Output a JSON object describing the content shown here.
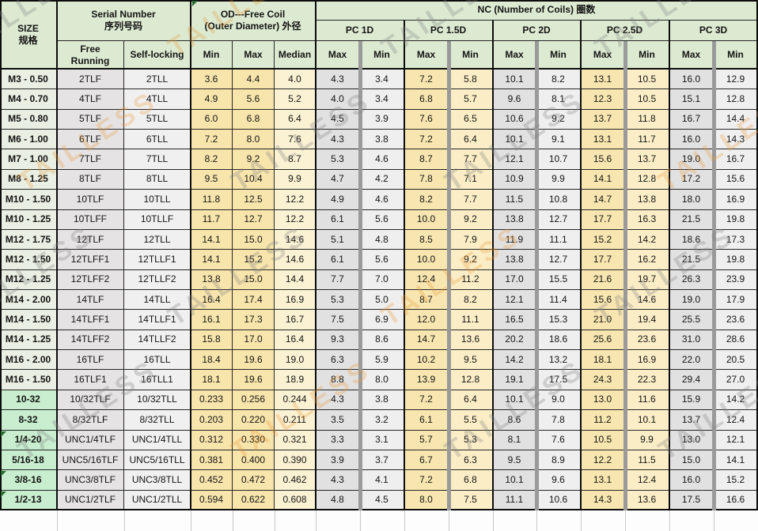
{
  "header": {
    "size": "SIZE\n规格",
    "serial": "Serial Number\n序列号码",
    "free_running": "Free\nRunning",
    "self_locking": "Self-locking",
    "od": "OD---Free Coil\n(Outer Diameter) 外径",
    "od_sub": [
      "Min",
      "Max",
      "Median"
    ],
    "nc": "NC (Number of Coils) 圈数",
    "pc_groups": [
      "PC 1D",
      "PC 1.5D",
      "PC 2D",
      "PC 2.5D",
      "PC 3D"
    ],
    "max_label": "Max",
    "min_label": "Min"
  },
  "watermark": {
    "text": "TAILLESS"
  },
  "palette": {
    "header_bg": "#dcead1",
    "size_metric": "#e9efe2",
    "size_imperial": "#c8eecf",
    "free_col": "#e5e3e3",
    "lock_col": "#f1f0f0",
    "od_minmax": "#f8e5ac",
    "od_median": "#fbf2d3",
    "nc_gray_max": "#e2e1e1",
    "nc_gray_min": "#f0efef",
    "nc_tan_max": "#f8e6b0",
    "nc_tan_min": "#fbeec6",
    "flag_green": "#276b2f",
    "watermark_gray": "rgba(128,128,128,0.30)",
    "watermark_orange": "rgba(233,150,55,0.28)"
  },
  "rows": [
    {
      "size": "M3 - 0.50",
      "type": "metric",
      "flag": false,
      "free": "2TLF",
      "lock": "2TLL",
      "od": [
        "3.6",
        "4.4",
        "4.0"
      ],
      "nc": [
        "4.3",
        "3.4",
        "7.2",
        "5.8",
        "10.1",
        "8.2",
        "13.1",
        "10.5",
        "16.0",
        "12.9"
      ]
    },
    {
      "size": "M4 - 0.70",
      "type": "metric",
      "flag": false,
      "free": "4TLF",
      "lock": "4TLL",
      "od": [
        "4.9",
        "5.6",
        "5.2"
      ],
      "nc": [
        "4.0",
        "3.4",
        "6.8",
        "5.7",
        "9.6",
        "8.1",
        "12.3",
        "10.5",
        "15.1",
        "12.8"
      ]
    },
    {
      "size": "M5 - 0.80",
      "type": "metric",
      "flag": false,
      "free": "5TLF",
      "lock": "5TLL",
      "od": [
        "6.0",
        "6.8",
        "6.4"
      ],
      "nc": [
        "4.5",
        "3.9",
        "7.6",
        "6.5",
        "10.6",
        "9.2",
        "13.7",
        "11.8",
        "16.7",
        "14.4"
      ]
    },
    {
      "size": "M6 - 1.00",
      "type": "metric",
      "flag": false,
      "free": "6TLF",
      "lock": "6TLL",
      "od": [
        "7.2",
        "8.0",
        "7.6"
      ],
      "nc": [
        "4.3",
        "3.8",
        "7.2",
        "6.4",
        "10.1",
        "9.1",
        "13.1",
        "11.7",
        "16.0",
        "14.3"
      ]
    },
    {
      "size": "M7 - 1.00",
      "type": "metric",
      "flag": false,
      "free": "7TLF",
      "lock": "7TLL",
      "od": [
        "8.2",
        "9.2",
        "8.7"
      ],
      "nc": [
        "5.3",
        "4.6",
        "8.7",
        "7.7",
        "12.1",
        "10.7",
        "15.6",
        "13.7",
        "19.0",
        "16.7"
      ]
    },
    {
      "size": "M8 - 1.25",
      "type": "metric",
      "flag": false,
      "free": "8TLF",
      "lock": "8TLL",
      "od": [
        "9.5",
        "10.4",
        "9.9"
      ],
      "nc": [
        "4.7",
        "4.2",
        "7.8",
        "7.1",
        "10.9",
        "9.9",
        "14.1",
        "12.8",
        "17.2",
        "15.6"
      ]
    },
    {
      "size": "M10 - 1.50",
      "type": "metric",
      "flag": false,
      "free": "10TLF",
      "lock": "10TLL",
      "od": [
        "11.8",
        "12.5",
        "12.2"
      ],
      "nc": [
        "4.9",
        "4.6",
        "8.2",
        "7.7",
        "11.5",
        "10.8",
        "14.7",
        "13.8",
        "18.0",
        "16.9"
      ]
    },
    {
      "size": "M10 - 1.25",
      "type": "metric",
      "flag": false,
      "free": "10TLFF",
      "lock": "10TLLF",
      "od": [
        "11.7",
        "12.7",
        "12.2"
      ],
      "nc": [
        "6.1",
        "5.6",
        "10.0",
        "9.2",
        "13.8",
        "12.7",
        "17.7",
        "16.3",
        "21.5",
        "19.8"
      ]
    },
    {
      "size": "M12 - 1.75",
      "type": "metric",
      "flag": false,
      "free": "12TLF",
      "lock": "12TLL",
      "od": [
        "14.1",
        "15.0",
        "14.6"
      ],
      "nc": [
        "5.1",
        "4.8",
        "8.5",
        "7.9",
        "11.9",
        "11.1",
        "15.2",
        "14.2",
        "18.6",
        "17.3"
      ]
    },
    {
      "size": "M12 - 1.50",
      "type": "metric",
      "flag": false,
      "free": "12TLFF1",
      "lock": "12TLLF1",
      "od": [
        "14.1",
        "15.2",
        "14.6"
      ],
      "nc": [
        "6.1",
        "5.6",
        "10.0",
        "9.2",
        "13.8",
        "12.7",
        "17.7",
        "16.2",
        "21.5",
        "19.8"
      ]
    },
    {
      "size": "M12 - 1.25",
      "type": "metric",
      "flag": false,
      "free": "12TLFF2",
      "lock": "12TLLF2",
      "od": [
        "13.8",
        "15.0",
        "14.4"
      ],
      "nc": [
        "7.7",
        "7.0",
        "12.4",
        "11.2",
        "17.0",
        "15.5",
        "21.6",
        "19.7",
        "26.3",
        "23.9"
      ]
    },
    {
      "size": "M14 - 2.00",
      "type": "metric",
      "flag": false,
      "free": "14TLF",
      "lock": "14TLL",
      "od": [
        "16.4",
        "17.4",
        "16.9"
      ],
      "nc": [
        "5.3",
        "5.0",
        "8.7",
        "8.2",
        "12.1",
        "11.4",
        "15.6",
        "14.6",
        "19.0",
        "17.9"
      ]
    },
    {
      "size": "M14 - 1.50",
      "type": "metric",
      "flag": false,
      "free": "14TLFF1",
      "lock": "14TLLF1",
      "od": [
        "16.1",
        "17.3",
        "16.7"
      ],
      "nc": [
        "7.5",
        "6.9",
        "12.0",
        "11.1",
        "16.5",
        "15.3",
        "21.0",
        "19.4",
        "25.5",
        "23.6"
      ]
    },
    {
      "size": "M14 - 1.25",
      "type": "metric",
      "flag": false,
      "free": "14TLFF2",
      "lock": "14TLLF2",
      "od": [
        "15.8",
        "17.0",
        "16.4"
      ],
      "nc": [
        "9.3",
        "8.6",
        "14.7",
        "13.6",
        "20.2",
        "18.6",
        "25.6",
        "23.6",
        "31.0",
        "28.6"
      ]
    },
    {
      "size": "M16 - 2.00",
      "type": "metric",
      "flag": false,
      "free": "16TLF",
      "lock": "16TLL",
      "od": [
        "18.4",
        "19.6",
        "19.0"
      ],
      "nc": [
        "6.3",
        "5.9",
        "10.2",
        "9.5",
        "14.2",
        "13.2",
        "18.1",
        "16.9",
        "22.0",
        "20.5"
      ]
    },
    {
      "size": "M16 - 1.50",
      "type": "metric",
      "flag": false,
      "free": "16TLF1",
      "lock": "16TLL1",
      "od": [
        "18.1",
        "19.6",
        "18.9"
      ],
      "nc": [
        "8.8",
        "8.0",
        "13.9",
        "12.8",
        "19.1",
        "17.5",
        "24.3",
        "22.3",
        "29.4",
        "27.0"
      ]
    },
    {
      "size": "10-32",
      "type": "imperial",
      "flag": false,
      "free": "10/32TLF",
      "lock": "10/32TLL",
      "od": [
        "0.233",
        "0.256",
        "0.244"
      ],
      "nc": [
        "4.3",
        "3.8",
        "7.2",
        "6.4",
        "10.1",
        "9.0",
        "13.0",
        "11.6",
        "15.9",
        "14.2"
      ]
    },
    {
      "size": "8-32",
      "type": "imperial",
      "flag": false,
      "free": "8/32TLF",
      "lock": "8/32TLL",
      "od": [
        "0.203",
        "0.220",
        "0.211"
      ],
      "nc": [
        "3.5",
        "3.2",
        "6.1",
        "5.5",
        "8.6",
        "7.8",
        "11.2",
        "10.1",
        "13.7",
        "12.4"
      ]
    },
    {
      "size": "1/4-20",
      "type": "imperial",
      "flag": true,
      "free": "UNC1/4TLF",
      "lock": "UNC1/4TLL",
      "od": [
        "0.312",
        "0.330",
        "0.321"
      ],
      "nc": [
        "3.3",
        "3.1",
        "5.7",
        "5.3",
        "8.1",
        "7.6",
        "10.5",
        "9.9",
        "13.0",
        "12.1"
      ]
    },
    {
      "size": "5/16-18",
      "type": "imperial",
      "flag": false,
      "free": "UNC5/16TLF",
      "lock": "UNC5/16TLL",
      "od": [
        "0.381",
        "0.400",
        "0.390"
      ],
      "nc": [
        "3.9",
        "3.7",
        "6.7",
        "6.3",
        "9.5",
        "8.9",
        "12.2",
        "11.5",
        "15.0",
        "14.1"
      ]
    },
    {
      "size": "3/8-16",
      "type": "imperial",
      "flag": true,
      "free": "UNC3/8TLF",
      "lock": "UNC3/8TLL",
      "od": [
        "0.452",
        "0.472",
        "0.462"
      ],
      "nc": [
        "4.3",
        "4.1",
        "7.2",
        "6.8",
        "10.1",
        "9.6",
        "13.1",
        "12.4",
        "16.0",
        "15.2"
      ]
    },
    {
      "size": "1/2-13",
      "type": "imperial",
      "flag": true,
      "free": "UNC1/2TLF",
      "lock": "UNC1/2TLL",
      "od": [
        "0.594",
        "0.622",
        "0.608"
      ],
      "nc": [
        "4.8",
        "4.5",
        "8.0",
        "7.5",
        "11.1",
        "10.6",
        "14.3",
        "13.6",
        "17.5",
        "16.6"
      ]
    }
  ]
}
